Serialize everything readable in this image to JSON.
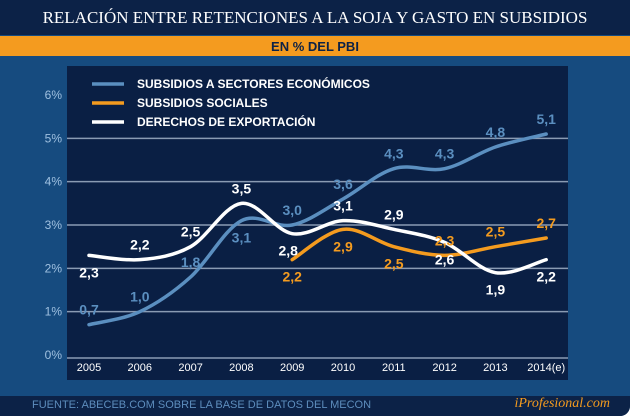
{
  "title": "RELACIÓN ENTRE RETENCIONES A LA SOJA Y GASTO EN SUBSIDIOS",
  "subtitle": "EN % DEL PBI",
  "source": "FUENTE: ABECEB.COM SOBRE LA BASE DE DATOS DEL MECON",
  "brand": "iProfesional.com",
  "chart_data": {
    "type": "line",
    "title": "RELACIÓN ENTRE RETENCIONES A LA SOJA Y GASTO EN SUBSIDIOS",
    "subtitle": "EN % DEL PBI",
    "categories": [
      "2005",
      "2006",
      "2007",
      "2008",
      "2009",
      "2010",
      "2011",
      "2012",
      "2013",
      "2014(e)"
    ],
    "yticks": [
      "0%",
      "1%",
      "2%",
      "3%",
      "4%",
      "5%",
      "6%"
    ],
    "ylim": [
      0,
      6
    ],
    "grid": true,
    "legend_position": "top-left",
    "series": [
      {
        "name": "SUBSIDIOS A SECTORES ECONÓMICOS",
        "color": "#5b8fc0",
        "values": [
          0.7,
          1.0,
          1.8,
          3.1,
          3.0,
          3.6,
          4.3,
          4.3,
          4.8,
          5.1
        ],
        "labels": [
          "0,7",
          "1,0",
          "1,8",
          "3,1",
          "3,0",
          "3,6",
          "4,3",
          "4,3",
          "4,8",
          "5,1"
        ]
      },
      {
        "name": "SUBSIDIOS SOCIALES",
        "color": "#f49b1f",
        "values": [
          null,
          null,
          null,
          null,
          2.2,
          2.9,
          2.5,
          2.3,
          2.5,
          2.7
        ],
        "labels": [
          "",
          "",
          "",
          "",
          "2,2",
          "2,9",
          "2,5",
          "2,3",
          "2,5",
          "2,7"
        ]
      },
      {
        "name": "DERECHOS DE EXPORTACIÓN",
        "color": "#ffffff",
        "values": [
          2.3,
          2.2,
          2.5,
          3.5,
          2.8,
          3.1,
          2.9,
          2.6,
          1.9,
          2.2
        ],
        "labels": [
          "2,3",
          "2,2",
          "2,5",
          "3,5",
          "2,8",
          "3,1",
          "2,9",
          "2,6",
          "1,9",
          "2,2"
        ]
      }
    ]
  }
}
